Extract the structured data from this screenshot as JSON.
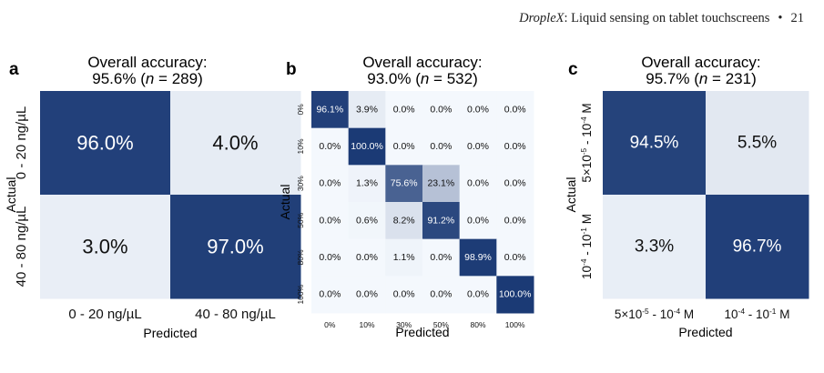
{
  "header": {
    "title_italic": "DropleX",
    "title_rest": ": Liquid sensing on tablet touchscreens",
    "bullet": "•",
    "page_number": "21"
  },
  "colors": {
    "dark": "#1b3a75",
    "light": "#f4f8fd",
    "text_on_dark": "#ffffff",
    "text_on_light": "#111111"
  },
  "chart_data": [
    {
      "type": "heatmap",
      "panel": "a",
      "title_line1": "Overall accuracy:",
      "title_line2_prefix": "95.6% (",
      "title_n_symbol": "n",
      "title_line2_suffix": " = 289)",
      "xlabel": "Predicted",
      "ylabel": "Actual",
      "x_categories": [
        "0 - 20 ng/µL",
        "40 - 80 ng/µL"
      ],
      "y_categories": [
        "0 - 20 ng/µL",
        "40 - 80 ng/µL"
      ],
      "values": [
        [
          96.0,
          4.0
        ],
        [
          3.0,
          97.0
        ]
      ],
      "labels": [
        [
          "96.0%",
          "4.0%"
        ],
        [
          "3.0%",
          "97.0%"
        ]
      ]
    },
    {
      "type": "heatmap",
      "panel": "b",
      "title_line1": "Overall accuracy:",
      "title_line2_prefix": "93.0% (",
      "title_n_symbol": "n",
      "title_line2_suffix": " = 532)",
      "xlabel": "Predicted",
      "ylabel": "Actual",
      "x_categories": [
        "0%",
        "10%",
        "30%",
        "50%",
        "80%",
        "100%"
      ],
      "y_categories": [
        "0%",
        "10%",
        "30%",
        "50%",
        "80%",
        "100%"
      ],
      "values": [
        [
          96.1,
          3.9,
          0.0,
          0.0,
          0.0,
          0.0
        ],
        [
          0.0,
          100.0,
          0.0,
          0.0,
          0.0,
          0.0
        ],
        [
          0.0,
          1.3,
          75.6,
          23.1,
          0.0,
          0.0
        ],
        [
          0.0,
          0.6,
          8.2,
          91.2,
          0.0,
          0.0
        ],
        [
          0.0,
          0.0,
          1.1,
          0.0,
          98.9,
          0.0
        ],
        [
          0.0,
          0.0,
          0.0,
          0.0,
          0.0,
          100.0
        ]
      ],
      "labels": [
        [
          "96.1%",
          "3.9%",
          "0.0%",
          "0.0%",
          "0.0%",
          "0.0%"
        ],
        [
          "0.0%",
          "100.0%",
          "0.0%",
          "0.0%",
          "0.0%",
          "0.0%"
        ],
        [
          "0.0%",
          "1.3%",
          "75.6%",
          "23.1%",
          "0.0%",
          "0.0%"
        ],
        [
          "0.0%",
          "0.6%",
          "8.2%",
          "91.2%",
          "0.0%",
          "0.0%"
        ],
        [
          "0.0%",
          "0.0%",
          "1.1%",
          "0.0%",
          "98.9%",
          "0.0%"
        ],
        [
          "0.0%",
          "0.0%",
          "0.0%",
          "0.0%",
          "0.0%",
          "100.0%"
        ]
      ]
    },
    {
      "type": "heatmap",
      "panel": "c",
      "title_line1": "Overall accuracy:",
      "title_line2_prefix": "95.7% (",
      "title_n_symbol": "n",
      "title_line2_suffix": " = 231)",
      "xlabel": "Predicted",
      "ylabel": "Actual",
      "x_categories": [
        {
          "parts": [
            [
              "5×10",
              ""
            ],
            [
              "-5",
              "sup"
            ],
            [
              " - 10",
              ""
            ],
            [
              "-4",
              "sup"
            ],
            [
              " M",
              ""
            ]
          ]
        },
        {
          "parts": [
            [
              "10",
              ""
            ],
            [
              "-4",
              "sup"
            ],
            [
              " - 10",
              ""
            ],
            [
              "-1",
              "sup"
            ],
            [
              " M",
              ""
            ]
          ]
        }
      ],
      "y_categories": [
        {
          "parts": [
            [
              "5×10",
              ""
            ],
            [
              "-5",
              "sup"
            ],
            [
              " - 10",
              ""
            ],
            [
              "-4",
              "sup"
            ],
            [
              " M",
              ""
            ]
          ]
        },
        {
          "parts": [
            [
              "10",
              ""
            ],
            [
              "-4",
              "sup"
            ],
            [
              " - 10",
              ""
            ],
            [
              "-1",
              "sup"
            ],
            [
              " M",
              ""
            ]
          ]
        }
      ],
      "values": [
        [
          94.5,
          5.5
        ],
        [
          3.3,
          96.7
        ]
      ],
      "labels": [
        [
          "94.5%",
          "5.5%"
        ],
        [
          "3.3%",
          "96.7%"
        ]
      ]
    }
  ]
}
